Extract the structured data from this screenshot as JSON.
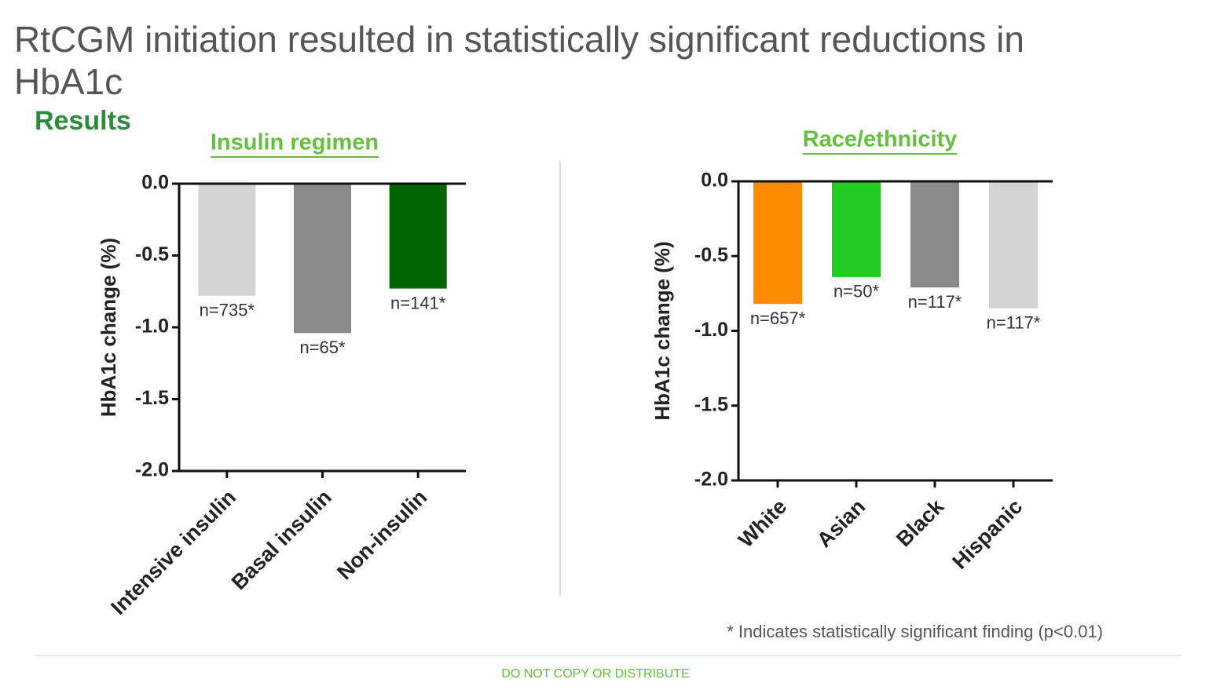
{
  "slide": {
    "title": "RtCGM initiation resulted in statistically significant reductions in HbA1c",
    "subtitle": "Results",
    "footnote": "* Indicates statistically significant finding (p<0.01)",
    "footer": "DO NOT COPY OR DISTRIBUTE"
  },
  "chart_data": [
    {
      "type": "bar",
      "title": "Insulin regimen",
      "ylabel": "HbA1c change (%)",
      "categories": [
        "Intensive insulin",
        "Basal insulin",
        "Non-insulin"
      ],
      "values": [
        -0.78,
        -1.04,
        -0.73
      ],
      "annotations": [
        "n=735*",
        "n=65*",
        "n=141*"
      ],
      "colors": [
        "#d4d4d4",
        "#8a8a8a",
        "#006400"
      ],
      "ylim": [
        -2,
        0
      ],
      "yticks": [
        {
          "value": 0,
          "label": "0.0"
        },
        -0.5,
        {
          "value": -1,
          "label": "-1.0"
        },
        -1.5,
        {
          "value": -2,
          "label": "-2.0"
        }
      ]
    },
    {
      "type": "bar",
      "title": "Race/ethnicity",
      "ylabel": "HbA1c change (%)",
      "categories": [
        "White",
        "Asian",
        "Black",
        "Hispanic"
      ],
      "values": [
        -0.82,
        -0.64,
        -0.71,
        -0.85
      ],
      "annotations": [
        "n=657*",
        "n=50*",
        "n=117*",
        "n=117*"
      ],
      "colors": [
        "#ff8c00",
        "#22cc22",
        "#8a8a8a",
        "#d4d4d4"
      ],
      "ylim": [
        -2,
        0
      ],
      "yticks": [
        {
          "value": 0,
          "label": "0.0"
        },
        -0.5,
        {
          "value": -1,
          "label": "-1.0"
        },
        -1.5,
        {
          "value": -2,
          "label": "-2.0"
        }
      ]
    }
  ]
}
